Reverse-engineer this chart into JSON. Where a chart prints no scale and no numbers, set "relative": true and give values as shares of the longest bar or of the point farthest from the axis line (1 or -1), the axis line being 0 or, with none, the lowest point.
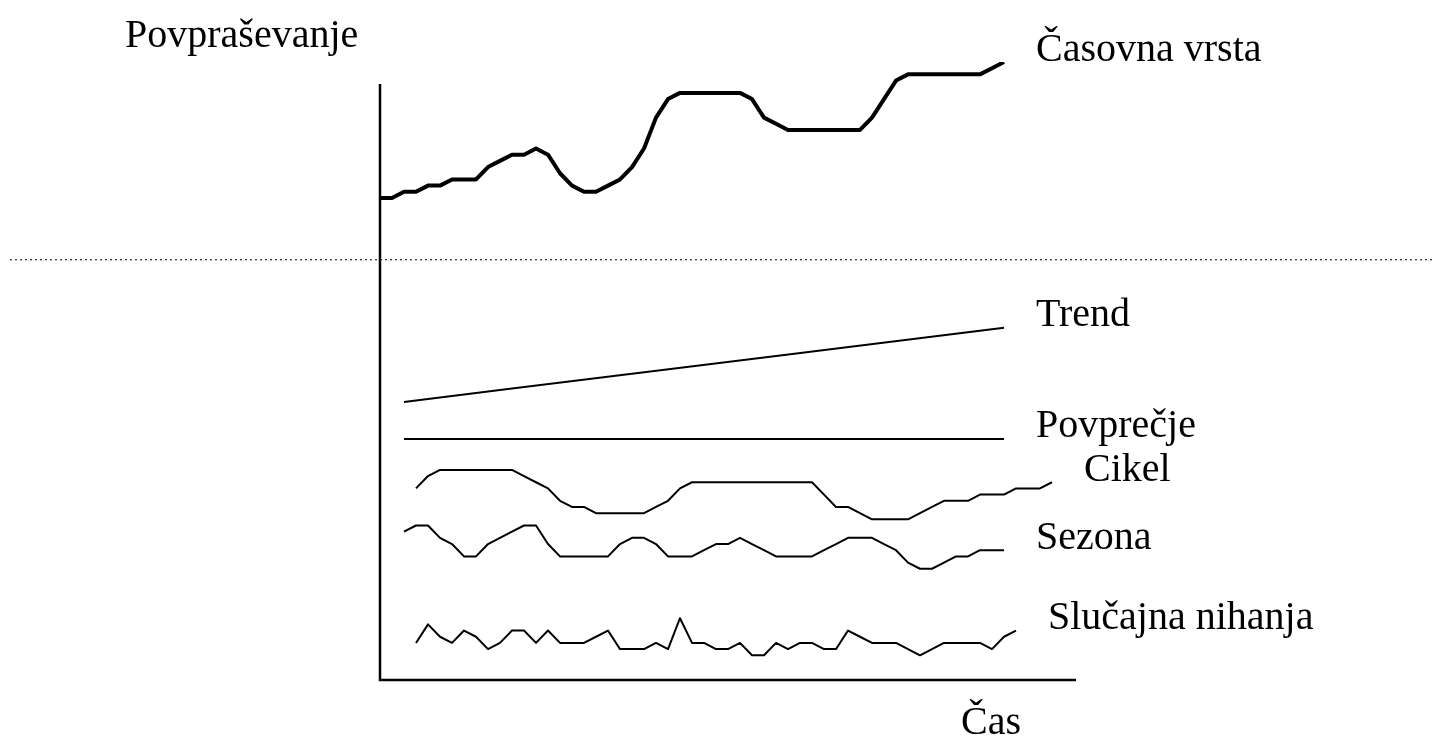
{
  "chart_data": {
    "type": "line",
    "relative": true,
    "ylabel": "Povpraševanje",
    "xlabel": "Čas",
    "marker": "none",
    "line_style": "solid",
    "categories": [
      null,
      null,
      null,
      null,
      null,
      null,
      null,
      null,
      null,
      null,
      null,
      null,
      null,
      null,
      null,
      null,
      null,
      null,
      null,
      null,
      null,
      null,
      null,
      null,
      null,
      null,
      null,
      null,
      null,
      null,
      null,
      null,
      null,
      null,
      null,
      null,
      null,
      null,
      null,
      null,
      null,
      null,
      null,
      null,
      null,
      null,
      null,
      null,
      null,
      null,
      null,
      null,
      null,
      null,
      null,
      null,
      null,
      null,
      null
    ],
    "series": [
      {
        "name": "Časovna vrsta",
        "color": "#000000",
        "values": [
          0.78,
          0.78,
          0.79,
          0.79,
          0.8,
          0.8,
          0.81,
          0.81,
          0.81,
          0.83,
          0.84,
          0.85,
          0.85,
          0.86,
          0.85,
          0.82,
          0.8,
          0.79,
          0.79,
          0.8,
          0.81,
          0.83,
          0.86,
          0.91,
          0.94,
          0.95,
          0.95,
          0.95,
          0.95,
          0.95,
          0.95,
          0.94,
          0.91,
          0.9,
          0.89,
          0.89,
          0.89,
          0.89,
          0.89,
          0.89,
          0.89,
          0.91,
          0.94,
          0.97,
          0.98,
          0.98,
          0.98,
          0.98,
          0.98,
          0.98,
          0.98,
          0.99,
          1,
          null,
          null,
          null,
          null,
          null,
          null
        ]
      },
      {
        "name": "Trend",
        "color": "#000000",
        "values": [
          null,
          null,
          0.45,
          null,
          null,
          null,
          null,
          null,
          null,
          null,
          null,
          null,
          null,
          null,
          null,
          null,
          null,
          null,
          null,
          null,
          null,
          null,
          null,
          null,
          null,
          null,
          null,
          null,
          null,
          null,
          null,
          null,
          null,
          null,
          null,
          null,
          null,
          null,
          null,
          null,
          null,
          null,
          null,
          null,
          null,
          null,
          null,
          null,
          null,
          null,
          null,
          null,
          0.57,
          null,
          null,
          null,
          null,
          null,
          null
        ]
      },
      {
        "name": "Povprečje",
        "color": "#000000",
        "values": [
          null,
          null,
          0.39,
          null,
          null,
          null,
          null,
          null,
          null,
          null,
          null,
          null,
          null,
          null,
          null,
          null,
          null,
          null,
          null,
          null,
          null,
          null,
          null,
          null,
          null,
          null,
          null,
          null,
          null,
          null,
          null,
          null,
          null,
          null,
          null,
          null,
          null,
          null,
          null,
          null,
          null,
          null,
          null,
          null,
          null,
          null,
          null,
          null,
          null,
          null,
          null,
          null,
          0.39,
          null,
          null,
          null,
          null,
          null,
          null
        ]
      },
      {
        "name": "Cikel",
        "color": "#000000",
        "values": [
          null,
          null,
          null,
          0.31,
          0.33,
          0.34,
          0.34,
          0.34,
          0.34,
          0.34,
          0.34,
          0.34,
          0.33,
          0.32,
          0.31,
          0.29,
          0.28,
          0.28,
          0.27,
          0.27,
          0.27,
          0.27,
          0.27,
          0.28,
          0.29,
          0.31,
          0.32,
          0.32,
          0.32,
          0.32,
          0.32,
          0.32,
          0.32,
          0.32,
          0.32,
          0.32,
          0.32,
          0.3,
          0.28,
          0.28,
          0.27,
          0.26,
          0.26,
          0.26,
          0.26,
          0.27,
          0.28,
          0.29,
          0.29,
          0.29,
          0.3,
          0.3,
          0.3,
          0.31,
          0.31,
          0.31,
          0.32,
          null,
          null
        ]
      },
      {
        "name": "Sezona",
        "color": "#000000",
        "values": [
          null,
          null,
          0.24,
          0.25,
          0.25,
          0.23,
          0.22,
          0.2,
          0.2,
          0.22,
          0.23,
          0.24,
          0.25,
          0.25,
          0.22,
          0.2,
          0.2,
          0.2,
          0.2,
          0.2,
          0.22,
          0.23,
          0.23,
          0.22,
          0.2,
          0.2,
          0.2,
          0.21,
          0.22,
          0.22,
          0.23,
          0.22,
          0.21,
          0.2,
          0.2,
          0.2,
          0.2,
          0.21,
          0.22,
          0.23,
          0.23,
          0.23,
          0.22,
          0.21,
          0.19,
          0.18,
          0.18,
          0.19,
          0.2,
          0.2,
          0.21,
          0.21,
          0.21,
          null,
          null,
          null,
          null,
          null,
          null
        ]
      },
      {
        "name": "Slučajna nihanja",
        "color": "#000000",
        "values": [
          null,
          null,
          null,
          0.06,
          0.09,
          0.07,
          0.06,
          0.08,
          0.07,
          0.05,
          0.06,
          0.08,
          0.08,
          0.06,
          0.08,
          0.06,
          0.06,
          0.06,
          0.07,
          0.08,
          0.05,
          0.05,
          0.05,
          0.06,
          0.05,
          0.1,
          0.06,
          0.06,
          0.05,
          0.05,
          0.06,
          0.04,
          0.04,
          0.06,
          0.05,
          0.06,
          0.06,
          0.05,
          0.05,
          0.08,
          0.07,
          0.06,
          0.06,
          0.06,
          0.05,
          0.04,
          0.05,
          0.06,
          0.06,
          0.06,
          0.06,
          0.05,
          0.07,
          0.08,
          null,
          null,
          null,
          null,
          null
        ]
      }
    ],
    "ref_lines": [
      {
        "axis": "y",
        "value": 0.68,
        "line_style": "dotted",
        "color": "#000000"
      }
    ]
  }
}
